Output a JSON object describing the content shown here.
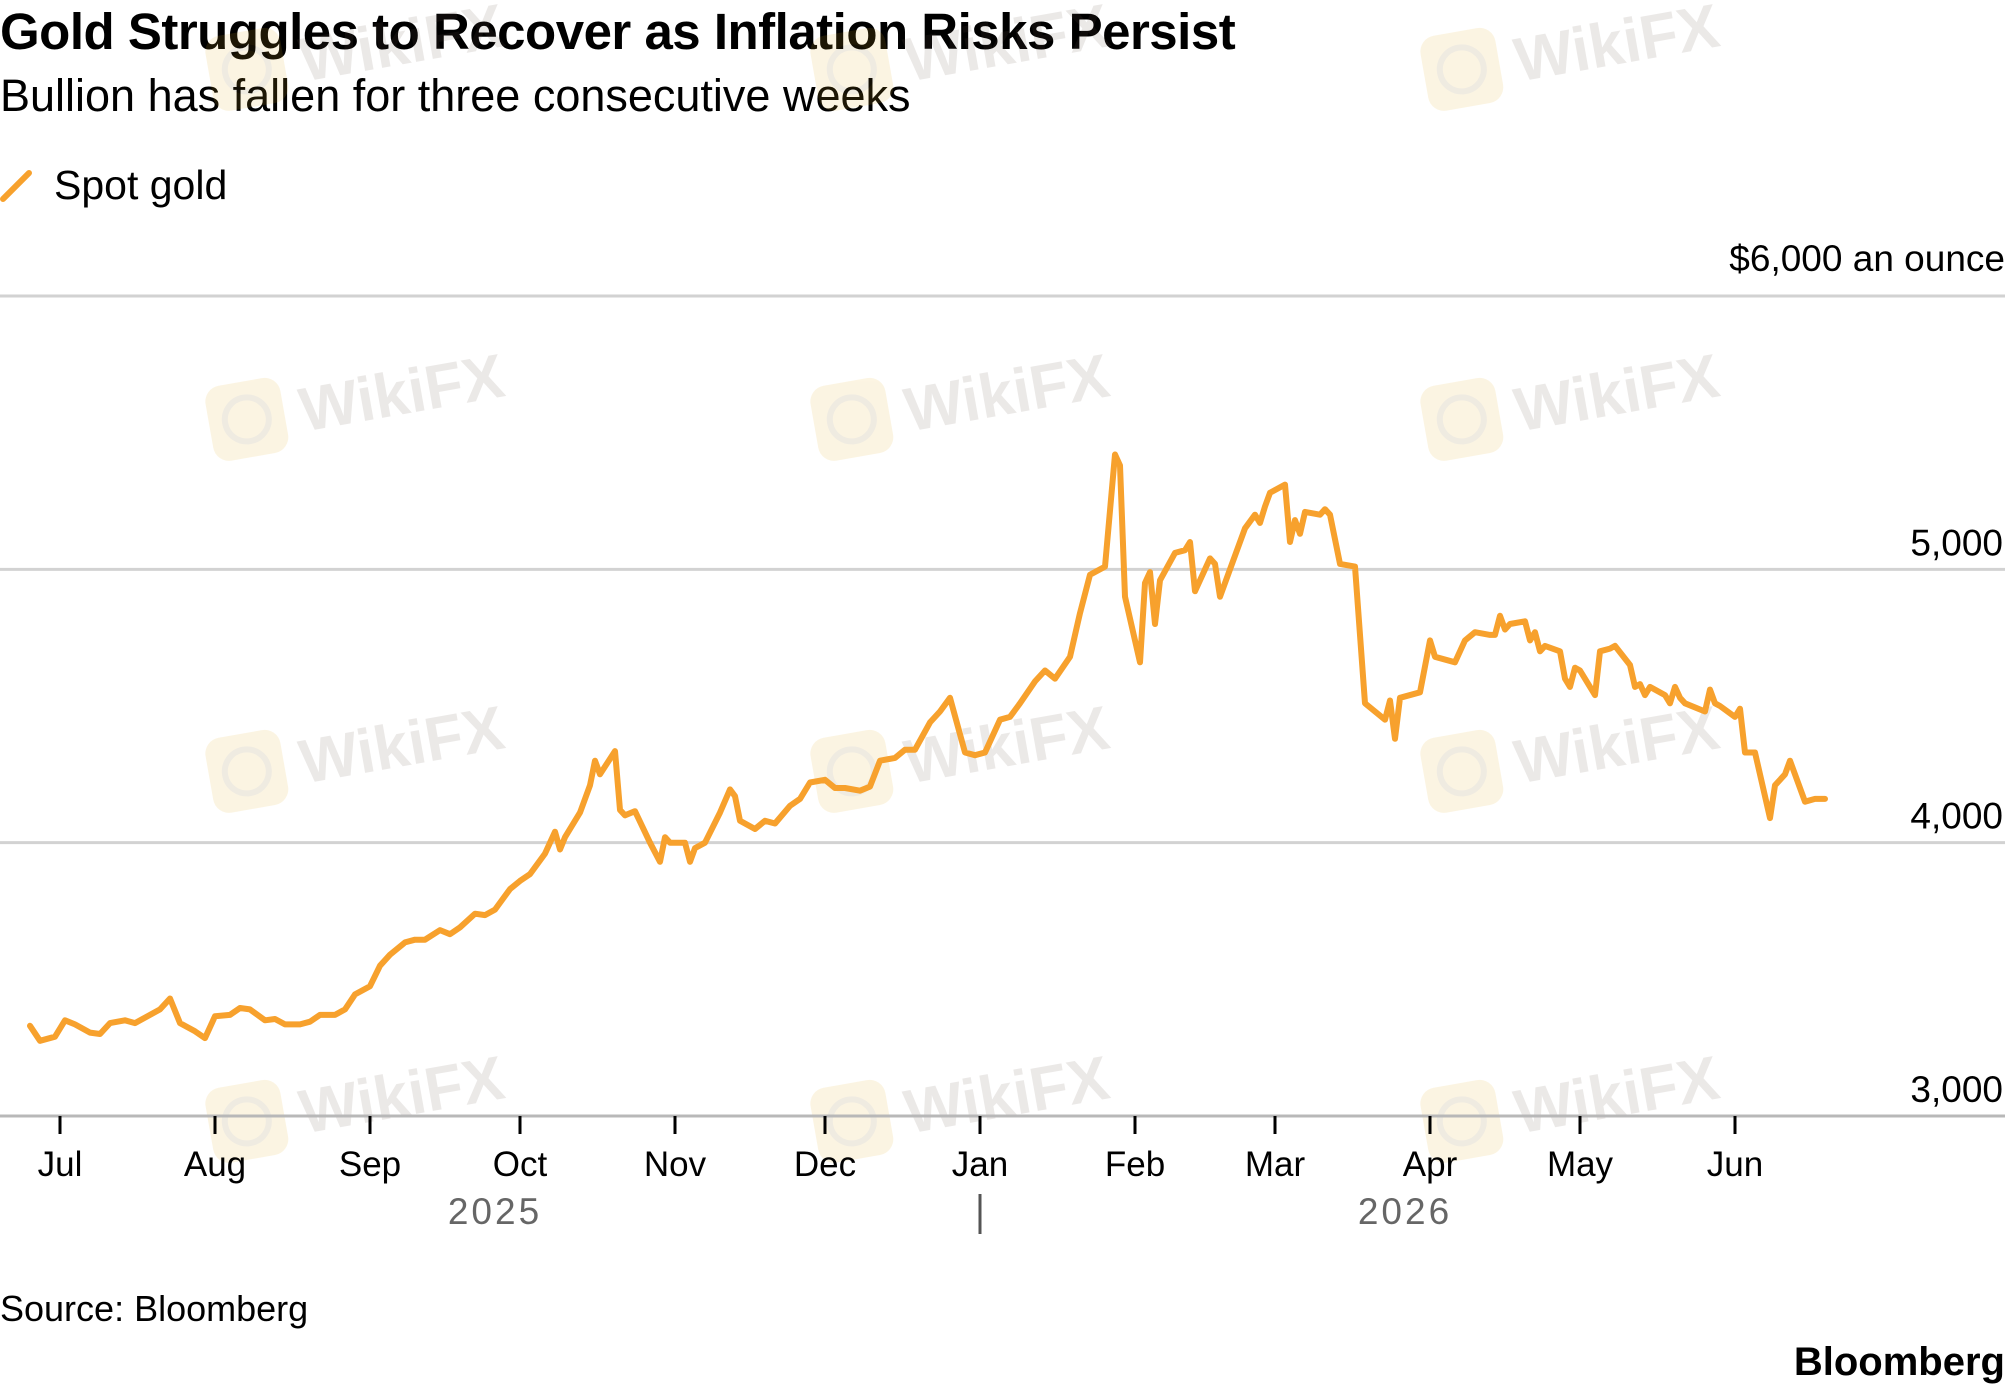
{
  "header": {
    "title": "Gold Struggles to Recover as Inflation Risks Persist",
    "subtitle": "Bullion has fallen for three consecutive weeks"
  },
  "legend": {
    "label": "Spot gold",
    "color": "#f7a12d"
  },
  "footer": {
    "source": "Source: Bloomberg",
    "brand": "Bloomberg"
  },
  "watermark": {
    "text": "WikiFX"
  },
  "chart_data": {
    "type": "line",
    "title": "Gold Struggles to Recover as Inflation Risks Persist",
    "subtitle": "Bullion has fallen for three consecutive weeks",
    "ylabel": "$6,000 an ounce",
    "ylim": [
      3000,
      6000
    ],
    "yticks": [
      {
        "value": 3000,
        "label": "3,000"
      },
      {
        "value": 4000,
        "label": "4,000"
      },
      {
        "value": 5000,
        "label": "5,000"
      },
      {
        "value": 6000,
        "label": "$6,000 an ounce"
      }
    ],
    "xlim": [
      "2025-06-23",
      "2026-07-08"
    ],
    "xticks": [
      {
        "date": "2025-07-01",
        "label": "Jul"
      },
      {
        "date": "2025-08-01",
        "label": "Aug"
      },
      {
        "date": "2025-09-01",
        "label": "Sep"
      },
      {
        "date": "2025-10-01",
        "label": "Oct"
      },
      {
        "date": "2025-11-01",
        "label": "Nov"
      },
      {
        "date": "2025-12-01",
        "label": "Dec"
      },
      {
        "date": "2026-01-01",
        "label": "Jan"
      },
      {
        "date": "2026-02-01",
        "label": "Feb"
      },
      {
        "date": "2026-03-01",
        "label": "Mar"
      },
      {
        "date": "2026-04-01",
        "label": "Apr"
      },
      {
        "date": "2026-05-01",
        "label": "May"
      },
      {
        "date": "2026-06-01",
        "label": "Jun"
      }
    ],
    "year_labels": [
      {
        "date": "2025-09-26",
        "label": "2025"
      },
      {
        "date": "2026-03-27",
        "label": "2026"
      }
    ],
    "year_divider": "2026-01-01",
    "grid": true,
    "legend_position": "top-left",
    "series": [
      {
        "name": "Spot gold",
        "color": "#f7a12d",
        "points": [
          [
            "2025-06-25",
            3330
          ],
          [
            "2025-06-27",
            3275
          ],
          [
            "2025-06-30",
            3290
          ],
          [
            "2025-07-02",
            3350
          ],
          [
            "2025-07-04",
            3335
          ],
          [
            "2025-07-07",
            3305
          ],
          [
            "2025-07-09",
            3300
          ],
          [
            "2025-07-11",
            3340
          ],
          [
            "2025-07-14",
            3350
          ],
          [
            "2025-07-16",
            3340
          ],
          [
            "2025-07-18",
            3360
          ],
          [
            "2025-07-21",
            3390
          ],
          [
            "2025-07-23",
            3430
          ],
          [
            "2025-07-25",
            3340
          ],
          [
            "2025-07-28",
            3310
          ],
          [
            "2025-07-30",
            3285
          ],
          [
            "2025-08-01",
            3365
          ],
          [
            "2025-08-04",
            3370
          ],
          [
            "2025-08-06",
            3395
          ],
          [
            "2025-08-08",
            3390
          ],
          [
            "2025-08-11",
            3350
          ],
          [
            "2025-08-13",
            3355
          ],
          [
            "2025-08-15",
            3335
          ],
          [
            "2025-08-18",
            3335
          ],
          [
            "2025-08-20",
            3345
          ],
          [
            "2025-08-22",
            3370
          ],
          [
            "2025-08-25",
            3370
          ],
          [
            "2025-08-27",
            3390
          ],
          [
            "2025-08-29",
            3445
          ],
          [
            "2025-09-01",
            3475
          ],
          [
            "2025-09-03",
            3550
          ],
          [
            "2025-09-05",
            3590
          ],
          [
            "2025-09-08",
            3635
          ],
          [
            "2025-09-10",
            3645
          ],
          [
            "2025-09-12",
            3645
          ],
          [
            "2025-09-15",
            3680
          ],
          [
            "2025-09-17",
            3665
          ],
          [
            "2025-09-19",
            3690
          ],
          [
            "2025-09-22",
            3740
          ],
          [
            "2025-09-24",
            3735
          ],
          [
            "2025-09-26",
            3755
          ],
          [
            "2025-09-29",
            3830
          ],
          [
            "2025-10-01",
            3860
          ],
          [
            "2025-10-03",
            3885
          ],
          [
            "2025-10-06",
            3960
          ],
          [
            "2025-10-08",
            4040
          ],
          [
            "2025-10-09",
            3975
          ],
          [
            "2025-10-10",
            4020
          ],
          [
            "2025-10-13",
            4110
          ],
          [
            "2025-10-15",
            4210
          ],
          [
            "2025-10-16",
            4300
          ],
          [
            "2025-10-17",
            4250
          ],
          [
            "2025-10-20",
            4335
          ],
          [
            "2025-10-21",
            4120
          ],
          [
            "2025-10-22",
            4100
          ],
          [
            "2025-10-24",
            4115
          ],
          [
            "2025-10-27",
            4000
          ],
          [
            "2025-10-29",
            3930
          ],
          [
            "2025-10-30",
            4020
          ],
          [
            "2025-10-31",
            4000
          ],
          [
            "2025-11-03",
            4000
          ],
          [
            "2025-11-04",
            3930
          ],
          [
            "2025-11-05",
            3980
          ],
          [
            "2025-11-07",
            4000
          ],
          [
            "2025-11-10",
            4110
          ],
          [
            "2025-11-12",
            4195
          ],
          [
            "2025-11-13",
            4170
          ],
          [
            "2025-11-14",
            4080
          ],
          [
            "2025-11-17",
            4050
          ],
          [
            "2025-11-19",
            4080
          ],
          [
            "2025-11-21",
            4070
          ],
          [
            "2025-11-24",
            4135
          ],
          [
            "2025-11-26",
            4160
          ],
          [
            "2025-11-28",
            4220
          ],
          [
            "2025-12-01",
            4230
          ],
          [
            "2025-12-03",
            4200
          ],
          [
            "2025-12-05",
            4200
          ],
          [
            "2025-12-08",
            4190
          ],
          [
            "2025-12-10",
            4205
          ],
          [
            "2025-12-12",
            4300
          ],
          [
            "2025-12-15",
            4310
          ],
          [
            "2025-12-17",
            4340
          ],
          [
            "2025-12-19",
            4340
          ],
          [
            "2025-12-22",
            4440
          ],
          [
            "2025-12-24",
            4480
          ],
          [
            "2025-12-26",
            4530
          ],
          [
            "2025-12-29",
            4330
          ],
          [
            "2025-12-31",
            4320
          ],
          [
            "2026-01-02",
            4330
          ],
          [
            "2026-01-05",
            4450
          ],
          [
            "2026-01-07",
            4460
          ],
          [
            "2026-01-09",
            4510
          ],
          [
            "2026-01-12",
            4590
          ],
          [
            "2026-01-14",
            4630
          ],
          [
            "2026-01-16",
            4600
          ],
          [
            "2026-01-19",
            4680
          ],
          [
            "2026-01-21",
            4840
          ],
          [
            "2026-01-23",
            4980
          ],
          [
            "2026-01-26",
            5010
          ],
          [
            "2026-01-28",
            5420
          ],
          [
            "2026-01-29",
            5380
          ],
          [
            "2026-01-30",
            4900
          ],
          [
            "2026-02-02",
            4660
          ],
          [
            "2026-02-03",
            4950
          ],
          [
            "2026-02-04",
            4990
          ],
          [
            "2026-02-05",
            4800
          ],
          [
            "2026-02-06",
            4960
          ],
          [
            "2026-02-09",
            5060
          ],
          [
            "2026-02-11",
            5070
          ],
          [
            "2026-02-12",
            5100
          ],
          [
            "2026-02-13",
            4920
          ],
          [
            "2026-02-16",
            5040
          ],
          [
            "2026-02-17",
            5020
          ],
          [
            "2026-02-18",
            4900
          ],
          [
            "2026-02-20",
            5000
          ],
          [
            "2026-02-23",
            5150
          ],
          [
            "2026-02-25",
            5200
          ],
          [
            "2026-02-26",
            5170
          ],
          [
            "2026-02-27",
            5230
          ],
          [
            "2026-02-28",
            5280
          ],
          [
            "2026-03-03",
            5310
          ],
          [
            "2026-03-04",
            5100
          ],
          [
            "2026-03-05",
            5180
          ],
          [
            "2026-03-06",
            5130
          ],
          [
            "2026-03-07",
            5210
          ],
          [
            "2026-03-10",
            5200
          ],
          [
            "2026-03-11",
            5220
          ],
          [
            "2026-03-12",
            5200
          ],
          [
            "2026-03-14",
            5020
          ],
          [
            "2026-03-17",
            5010
          ],
          [
            "2026-03-19",
            4510
          ],
          [
            "2026-03-23",
            4450
          ],
          [
            "2026-03-24",
            4520
          ],
          [
            "2026-03-25",
            4380
          ],
          [
            "2026-03-26",
            4530
          ],
          [
            "2026-03-30",
            4550
          ],
          [
            "2026-04-01",
            4740
          ],
          [
            "2026-04-02",
            4680
          ],
          [
            "2026-04-06",
            4660
          ],
          [
            "2026-04-08",
            4740
          ],
          [
            "2026-04-10",
            4770
          ],
          [
            "2026-04-13",
            4760
          ],
          [
            "2026-04-14",
            4760
          ],
          [
            "2026-04-15",
            4830
          ],
          [
            "2026-04-16",
            4780
          ],
          [
            "2026-04-17",
            4800
          ],
          [
            "2026-04-20",
            4810
          ],
          [
            "2026-04-21",
            4740
          ],
          [
            "2026-04-22",
            4770
          ],
          [
            "2026-04-23",
            4700
          ],
          [
            "2026-04-24",
            4720
          ],
          [
            "2026-04-27",
            4700
          ],
          [
            "2026-04-28",
            4600
          ],
          [
            "2026-04-29",
            4570
          ],
          [
            "2026-04-30",
            4640
          ],
          [
            "2026-05-01",
            4630
          ],
          [
            "2026-05-04",
            4540
          ],
          [
            "2026-05-05",
            4700
          ],
          [
            "2026-05-07",
            4710
          ],
          [
            "2026-05-08",
            4720
          ],
          [
            "2026-05-11",
            4650
          ],
          [
            "2026-05-12",
            4570
          ],
          [
            "2026-05-13",
            4580
          ],
          [
            "2026-05-14",
            4540
          ],
          [
            "2026-05-15",
            4570
          ],
          [
            "2026-05-18",
            4540
          ],
          [
            "2026-05-19",
            4510
          ],
          [
            "2026-05-20",
            4570
          ],
          [
            "2026-05-21",
            4530
          ],
          [
            "2026-05-22",
            4510
          ],
          [
            "2026-05-26",
            4480
          ],
          [
            "2026-05-27",
            4560
          ],
          [
            "2026-05-28",
            4510
          ],
          [
            "2026-05-29",
            4500
          ],
          [
            "2026-06-01",
            4460
          ],
          [
            "2026-06-02",
            4490
          ],
          [
            "2026-06-03",
            4330
          ],
          [
            "2026-06-05",
            4330
          ],
          [
            "2026-06-08",
            4090
          ],
          [
            "2026-06-09",
            4210
          ],
          [
            "2026-06-11",
            4250
          ],
          [
            "2026-06-12",
            4300
          ],
          [
            "2026-06-15",
            4150
          ],
          [
            "2026-06-17",
            4160
          ],
          [
            "2026-06-19",
            4160
          ]
        ]
      }
    ]
  }
}
